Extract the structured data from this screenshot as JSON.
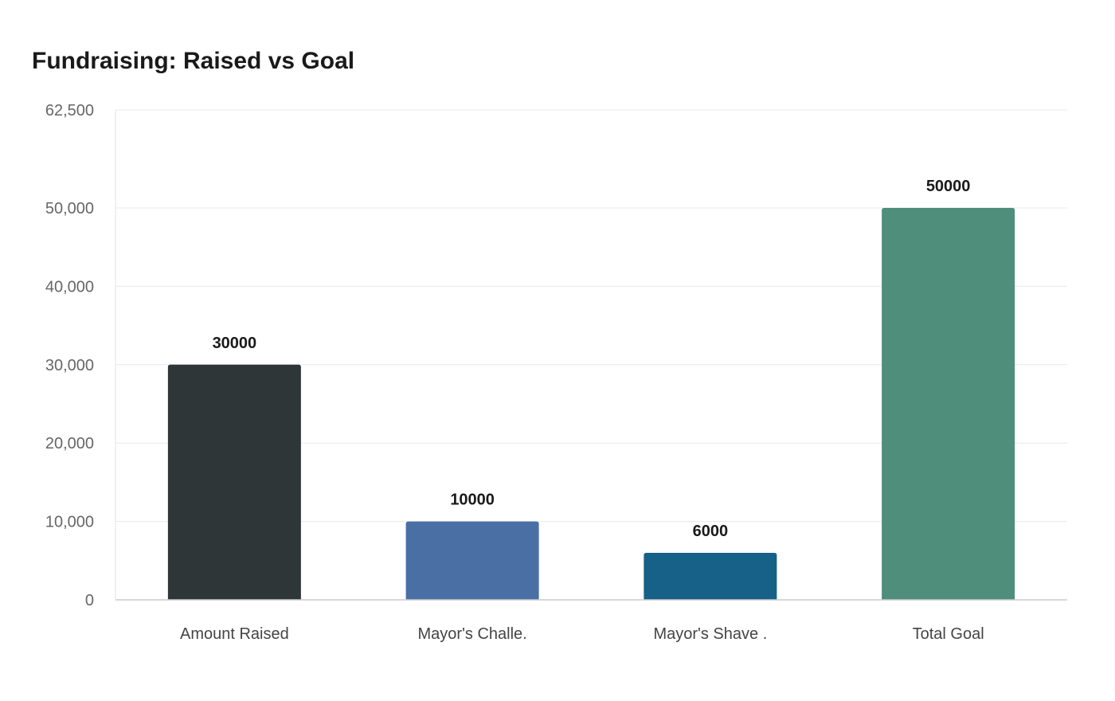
{
  "chart_data": {
    "type": "bar",
    "title": "Fundraising: Raised vs Goal",
    "xlabel": "",
    "ylabel": "",
    "categories": [
      "Amount Raised",
      "Mayor's Challe.",
      "Mayor's Shave .",
      "Total Goal"
    ],
    "values": [
      30000,
      10000,
      6000,
      50000
    ],
    "data_labels": [
      "30000",
      "10000",
      "6000",
      "50000"
    ],
    "colors": [
      "#2e3638",
      "#4a6fa5",
      "#176087",
      "#4e8e7a"
    ],
    "ylim": [
      0,
      62500
    ],
    "yticks": [
      0,
      10000,
      20000,
      30000,
      40000,
      50000,
      62500
    ],
    "ytick_labels": [
      "0",
      "10,000",
      "20,000",
      "30,000",
      "40,000",
      "50,000",
      "62,500"
    ],
    "grid": true,
    "legend": "none"
  }
}
